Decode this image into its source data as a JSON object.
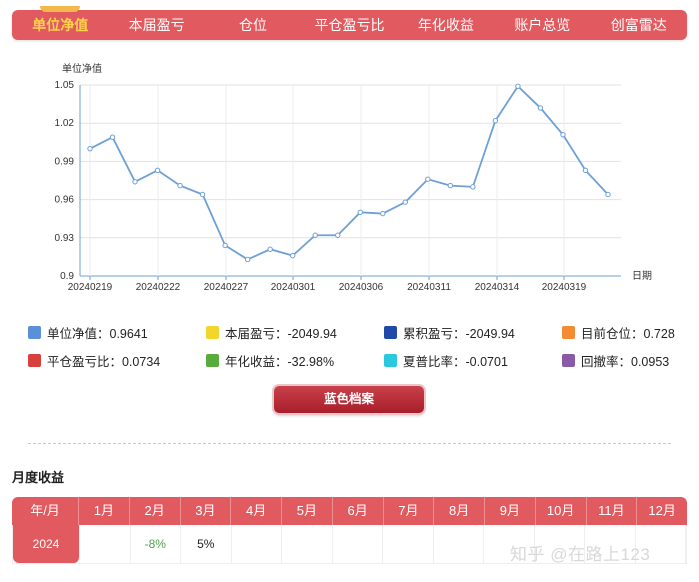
{
  "tabs": [
    {
      "label": "单位净值",
      "active": true
    },
    {
      "label": "本届盈亏",
      "active": false
    },
    {
      "label": "仓位",
      "active": false
    },
    {
      "label": "平仓盈亏比",
      "active": false
    },
    {
      "label": "年化收益",
      "active": false
    },
    {
      "label": "账户总览",
      "active": false
    },
    {
      "label": "创富雷达",
      "active": false
    }
  ],
  "chart_data": {
    "type": "line",
    "ylabel": "单位净值",
    "xlabel": "日期",
    "ylim": [
      0.9,
      1.05
    ],
    "yticks": [
      "1.05",
      "1.02",
      "0.99",
      "0.96",
      "0.93",
      "0.9"
    ],
    "xtick_labels": [
      "20240219",
      "20240222",
      "20240227",
      "20240301",
      "20240306",
      "20240311",
      "20240314",
      "20240319"
    ],
    "series": [
      {
        "color": "#6e9fd6",
        "values": [
          1.0,
          1.009,
          0.974,
          0.983,
          0.971,
          0.964,
          0.924,
          0.913,
          0.921,
          0.916,
          0.932,
          0.932,
          0.95,
          0.949,
          0.958,
          0.976,
          0.971,
          0.97,
          1.022,
          1.049,
          1.032,
          1.011,
          0.983,
          0.964
        ]
      }
    ],
    "grid": true
  },
  "legend": [
    [
      {
        "color": "#5b8fd9",
        "text": "单位净值：0.9641"
      },
      {
        "color": "#f2d62b",
        "text": "本届盈亏：-2049.94"
      },
      {
        "color": "#1f4aa8",
        "text": "累积盈亏：-2049.94"
      },
      {
        "color": "#f48a32",
        "text": "目前仓位：0.728"
      }
    ],
    [
      {
        "color": "#d9403c",
        "text": "平仓盈亏比：0.0734"
      },
      {
        "color": "#58ac3c",
        "text": "年化收益：-32.98%"
      },
      {
        "color": "#2ac9e0",
        "text": "夏普比率：-0.0701"
      },
      {
        "color": "#8a5aa6",
        "text": "回撤率：0.0953"
      }
    ]
  ],
  "button_label": "蓝色档案",
  "section_title": "月度收益",
  "month_table": {
    "headers": [
      "年/月",
      "1月",
      "2月",
      "3月",
      "4月",
      "5月",
      "6月",
      "7月",
      "8月",
      "9月",
      "10月",
      "11月",
      "12月"
    ],
    "rows": [
      [
        "2024",
        "",
        "-8%",
        "5%",
        "",
        "",
        "",
        "",
        "",
        "",
        "",
        "",
        ""
      ]
    ]
  },
  "watermark": "知乎 @在路上123"
}
